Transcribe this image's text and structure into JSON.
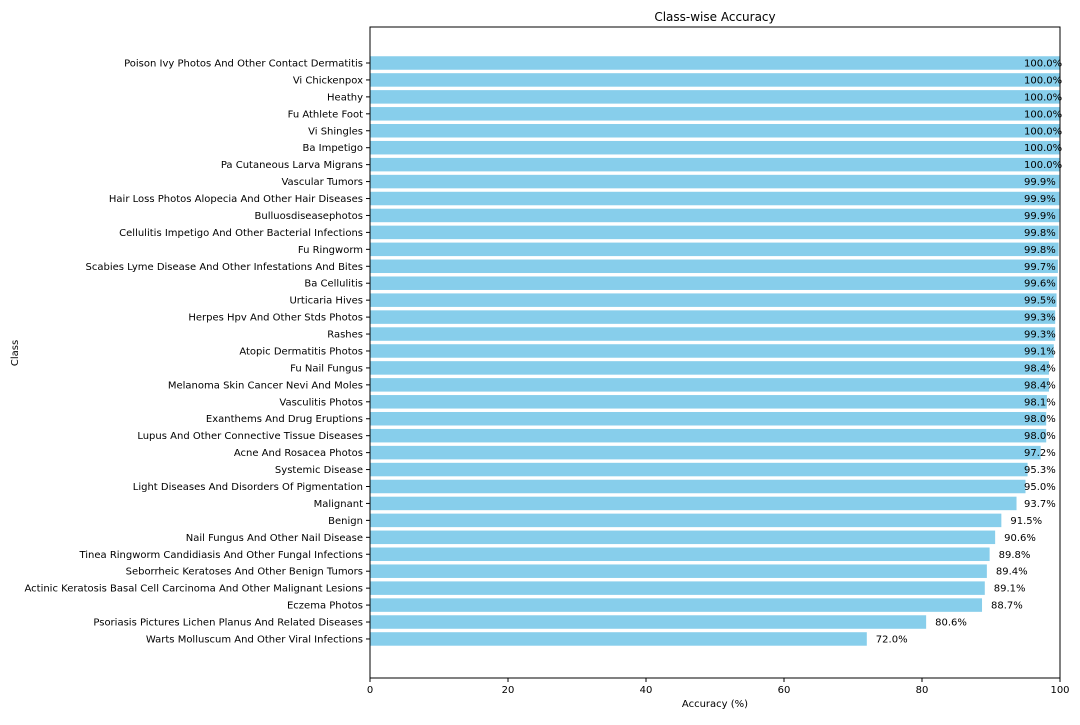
{
  "chart_data": {
    "type": "bar",
    "orientation": "horizontal",
    "title": "Class-wise Accuracy",
    "xlabel": "Accuracy (%)",
    "ylabel": "Class",
    "xlim": [
      0,
      100
    ],
    "xticks": [
      "0",
      "20",
      "40",
      "60",
      "80",
      "100"
    ],
    "grid": false,
    "bar_color": "#87CEEB",
    "bars": [
      {
        "category": "Poison Ivy Photos And Other Contact Dermatitis",
        "value": 100.0,
        "label": "100.0%"
      },
      {
        "category": "Vi Chickenpox",
        "value": 100.0,
        "label": "100.0%"
      },
      {
        "category": "Heathy",
        "value": 100.0,
        "label": "100.0%"
      },
      {
        "category": "Fu Athlete Foot",
        "value": 100.0,
        "label": "100.0%"
      },
      {
        "category": "Vi Shingles",
        "value": 100.0,
        "label": "100.0%"
      },
      {
        "category": "Ba Impetigo",
        "value": 100.0,
        "label": "100.0%"
      },
      {
        "category": "Pa Cutaneous Larva Migrans",
        "value": 100.0,
        "label": "100.0%"
      },
      {
        "category": "Vascular Tumors",
        "value": 99.9,
        "label": "99.9%"
      },
      {
        "category": "Hair Loss Photos Alopecia And Other Hair Diseases",
        "value": 99.9,
        "label": "99.9%"
      },
      {
        "category": "Bulluosdiseasephotos",
        "value": 99.9,
        "label": "99.9%"
      },
      {
        "category": "Cellulitis Impetigo And Other Bacterial Infections",
        "value": 99.8,
        "label": "99.8%"
      },
      {
        "category": "Fu Ringworm",
        "value": 99.8,
        "label": "99.8%"
      },
      {
        "category": "Scabies Lyme Disease And Other Infestations And Bites",
        "value": 99.7,
        "label": "99.7%"
      },
      {
        "category": "Ba  Cellulitis",
        "value": 99.6,
        "label": "99.6%"
      },
      {
        "category": "Urticaria Hives",
        "value": 99.5,
        "label": "99.5%"
      },
      {
        "category": "Herpes Hpv And Other Stds Photos",
        "value": 99.3,
        "label": "99.3%"
      },
      {
        "category": "Rashes",
        "value": 99.3,
        "label": "99.3%"
      },
      {
        "category": "Atopic Dermatitis Photos",
        "value": 99.1,
        "label": "99.1%"
      },
      {
        "category": "Fu Nail Fungus",
        "value": 98.4,
        "label": "98.4%"
      },
      {
        "category": "Melanoma Skin Cancer Nevi And Moles",
        "value": 98.4,
        "label": "98.4%"
      },
      {
        "category": "Vasculitis Photos",
        "value": 98.1,
        "label": "98.1%"
      },
      {
        "category": "Exanthems And Drug Eruptions",
        "value": 98.0,
        "label": "98.0%"
      },
      {
        "category": "Lupus And Other Connective Tissue Diseases",
        "value": 98.0,
        "label": "98.0%"
      },
      {
        "category": "Acne And Rosacea Photos",
        "value": 97.2,
        "label": "97.2%"
      },
      {
        "category": "Systemic Disease",
        "value": 95.3,
        "label": "95.3%"
      },
      {
        "category": "Light Diseases And Disorders Of Pigmentation",
        "value": 95.0,
        "label": "95.0%"
      },
      {
        "category": "Malignant",
        "value": 93.7,
        "label": "93.7%"
      },
      {
        "category": "Benign",
        "value": 91.5,
        "label": "91.5%"
      },
      {
        "category": "Nail Fungus And Other Nail Disease",
        "value": 90.6,
        "label": "90.6%"
      },
      {
        "category": "Tinea Ringworm Candidiasis And Other Fungal Infections",
        "value": 89.8,
        "label": "89.8%"
      },
      {
        "category": "Seborrheic Keratoses And Other Benign Tumors",
        "value": 89.4,
        "label": "89.4%"
      },
      {
        "category": "Actinic Keratosis Basal Cell Carcinoma And Other Malignant Lesions",
        "value": 89.1,
        "label": "89.1%"
      },
      {
        "category": "Eczema Photos",
        "value": 88.7,
        "label": "88.7%"
      },
      {
        "category": "Psoriasis Pictures Lichen Planus And Related Diseases",
        "value": 80.6,
        "label": "80.6%"
      },
      {
        "category": "Warts Molluscum And Other Viral Infections",
        "value": 72.0,
        "label": "72.0%"
      }
    ]
  }
}
